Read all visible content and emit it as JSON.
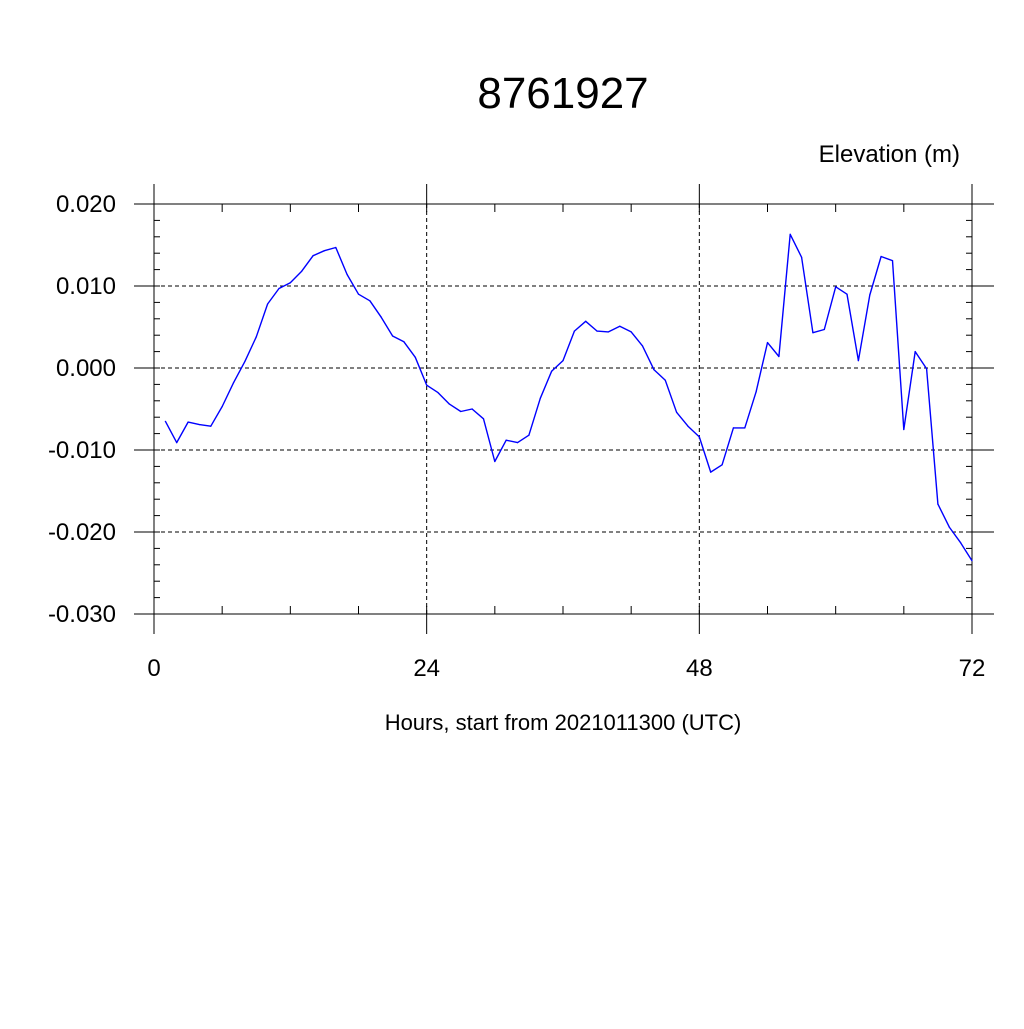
{
  "chart_data": {
    "type": "line",
    "title": "8761927",
    "subtitle": "Elevation (m)",
    "xlabel": "Hours, start from 2021011300 (UTC)",
    "ylabel": "",
    "xlim": [
      0,
      72
    ],
    "ylim": [
      -0.03,
      0.02
    ],
    "x_ticks": [
      0,
      24,
      48,
      72
    ],
    "x_tick_labels": [
      "0",
      "24",
      "48",
      "72"
    ],
    "y_ticks": [
      0.02,
      0.01,
      0.0,
      -0.01,
      -0.02,
      -0.03
    ],
    "y_tick_labels": [
      "0.020",
      "0.010",
      "0.000",
      "-0.010",
      "-0.020",
      "-0.030"
    ],
    "grid": true,
    "line_color": "#0000ff",
    "series": [
      {
        "x": [
          1,
          2,
          3,
          4,
          5,
          6,
          7,
          8,
          9,
          10,
          11,
          12,
          13,
          14,
          15,
          16,
          17,
          18,
          19,
          20,
          21,
          22,
          23,
          24,
          25,
          26,
          27,
          28,
          29,
          30,
          31,
          32,
          33,
          34,
          35,
          36,
          37,
          38,
          39,
          40,
          41,
          42,
          43,
          44,
          45,
          46,
          47,
          48,
          49,
          50,
          51,
          52,
          53,
          54,
          55,
          56,
          57,
          58,
          59,
          60,
          61,
          62,
          63,
          64,
          65,
          66,
          67,
          68,
          69,
          70,
          71,
          72
        ],
        "values": [
          -0.0065,
          -0.0091,
          -0.0066,
          -0.0069,
          -0.0071,
          -0.0047,
          -0.0018,
          0.0008,
          0.0038,
          0.0078,
          0.0097,
          0.0104,
          0.0118,
          0.0137,
          0.0143,
          0.0147,
          0.0114,
          0.009,
          0.0082,
          0.0062,
          0.0039,
          0.0032,
          0.0013,
          -0.0021,
          -0.003,
          -0.0044,
          -0.0053,
          -0.005,
          -0.0062,
          -0.0114,
          -0.0088,
          -0.0091,
          -0.0082,
          -0.0037,
          -0.0004,
          0.0009,
          0.0045,
          0.0057,
          0.0045,
          0.0044,
          0.0051,
          0.0044,
          0.0027,
          -0.0002,
          -0.0015,
          -0.0054,
          -0.0071,
          -0.0084,
          -0.0127,
          -0.0118,
          -0.0073,
          -0.0073,
          -0.0029,
          0.0031,
          0.0014,
          0.0163,
          0.0135,
          0.0043,
          0.0047,
          0.0099,
          0.009,
          0.0009,
          0.0089,
          0.0136,
          0.0131,
          -0.0075,
          0.002,
          -0.0001,
          -0.0166,
          -0.0194,
          -0.0213,
          -0.0235
        ]
      }
    ]
  }
}
